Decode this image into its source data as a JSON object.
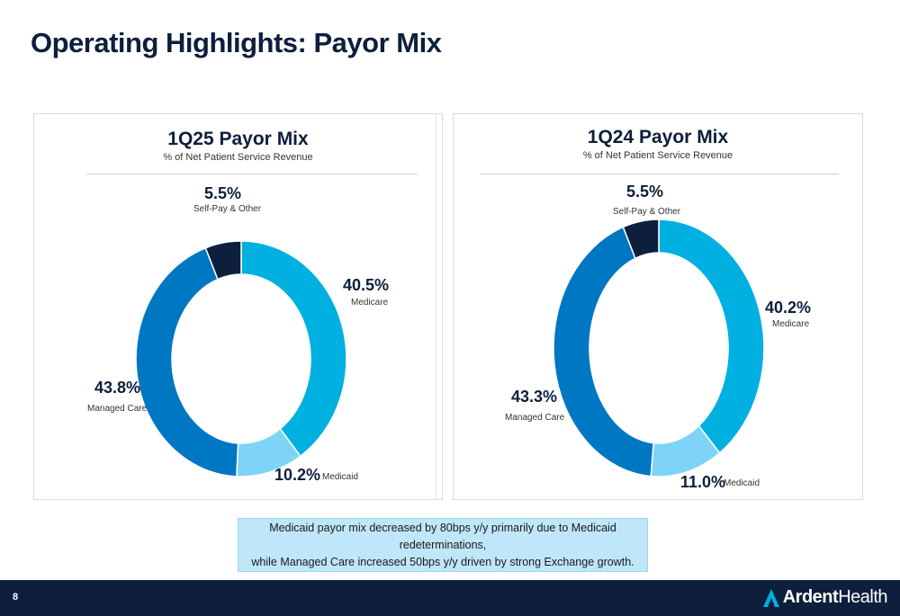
{
  "page": {
    "title": "Operating Highlights: Payor Mix",
    "page_number": "8",
    "callout_line1": "Medicaid payor mix decreased by 80bps y/y primarily due to Medicaid redeterminations,",
    "callout_line2": "while Managed Care increased 50bps y/y driven by strong Exchange growth.",
    "logo_word1": "Ardent",
    "logo_word2": "Health"
  },
  "colors": {
    "medicare": "#00b0e0",
    "medicaid": "#7fd3f7",
    "managed_care": "#0077c2",
    "self_pay_other": "#0d1f3c",
    "navy": "#0d1f3c"
  },
  "chart_data": [
    {
      "type": "pie",
      "title": "1Q25 Payor Mix",
      "subtitle": "% of Net Patient Service Revenue",
      "categories": [
        "Medicare",
        "Medicaid",
        "Managed Care",
        "Self-Pay & Other"
      ],
      "values": [
        40.5,
        10.2,
        43.8,
        5.5
      ],
      "value_labels": [
        "40.5%",
        "10.2%",
        "43.8%",
        "5.5%"
      ],
      "donut": true
    },
    {
      "type": "pie",
      "title": "1Q24 Payor Mix",
      "subtitle": "% of Net Patient Service Revenue",
      "categories": [
        "Medicare",
        "Medicaid",
        "Managed Care",
        "Self-Pay & Other"
      ],
      "values": [
        40.2,
        11.0,
        43.3,
        5.5
      ],
      "value_labels": [
        "40.2%",
        "11.0%",
        "43.3%",
        "5.5%"
      ],
      "donut": true
    }
  ]
}
